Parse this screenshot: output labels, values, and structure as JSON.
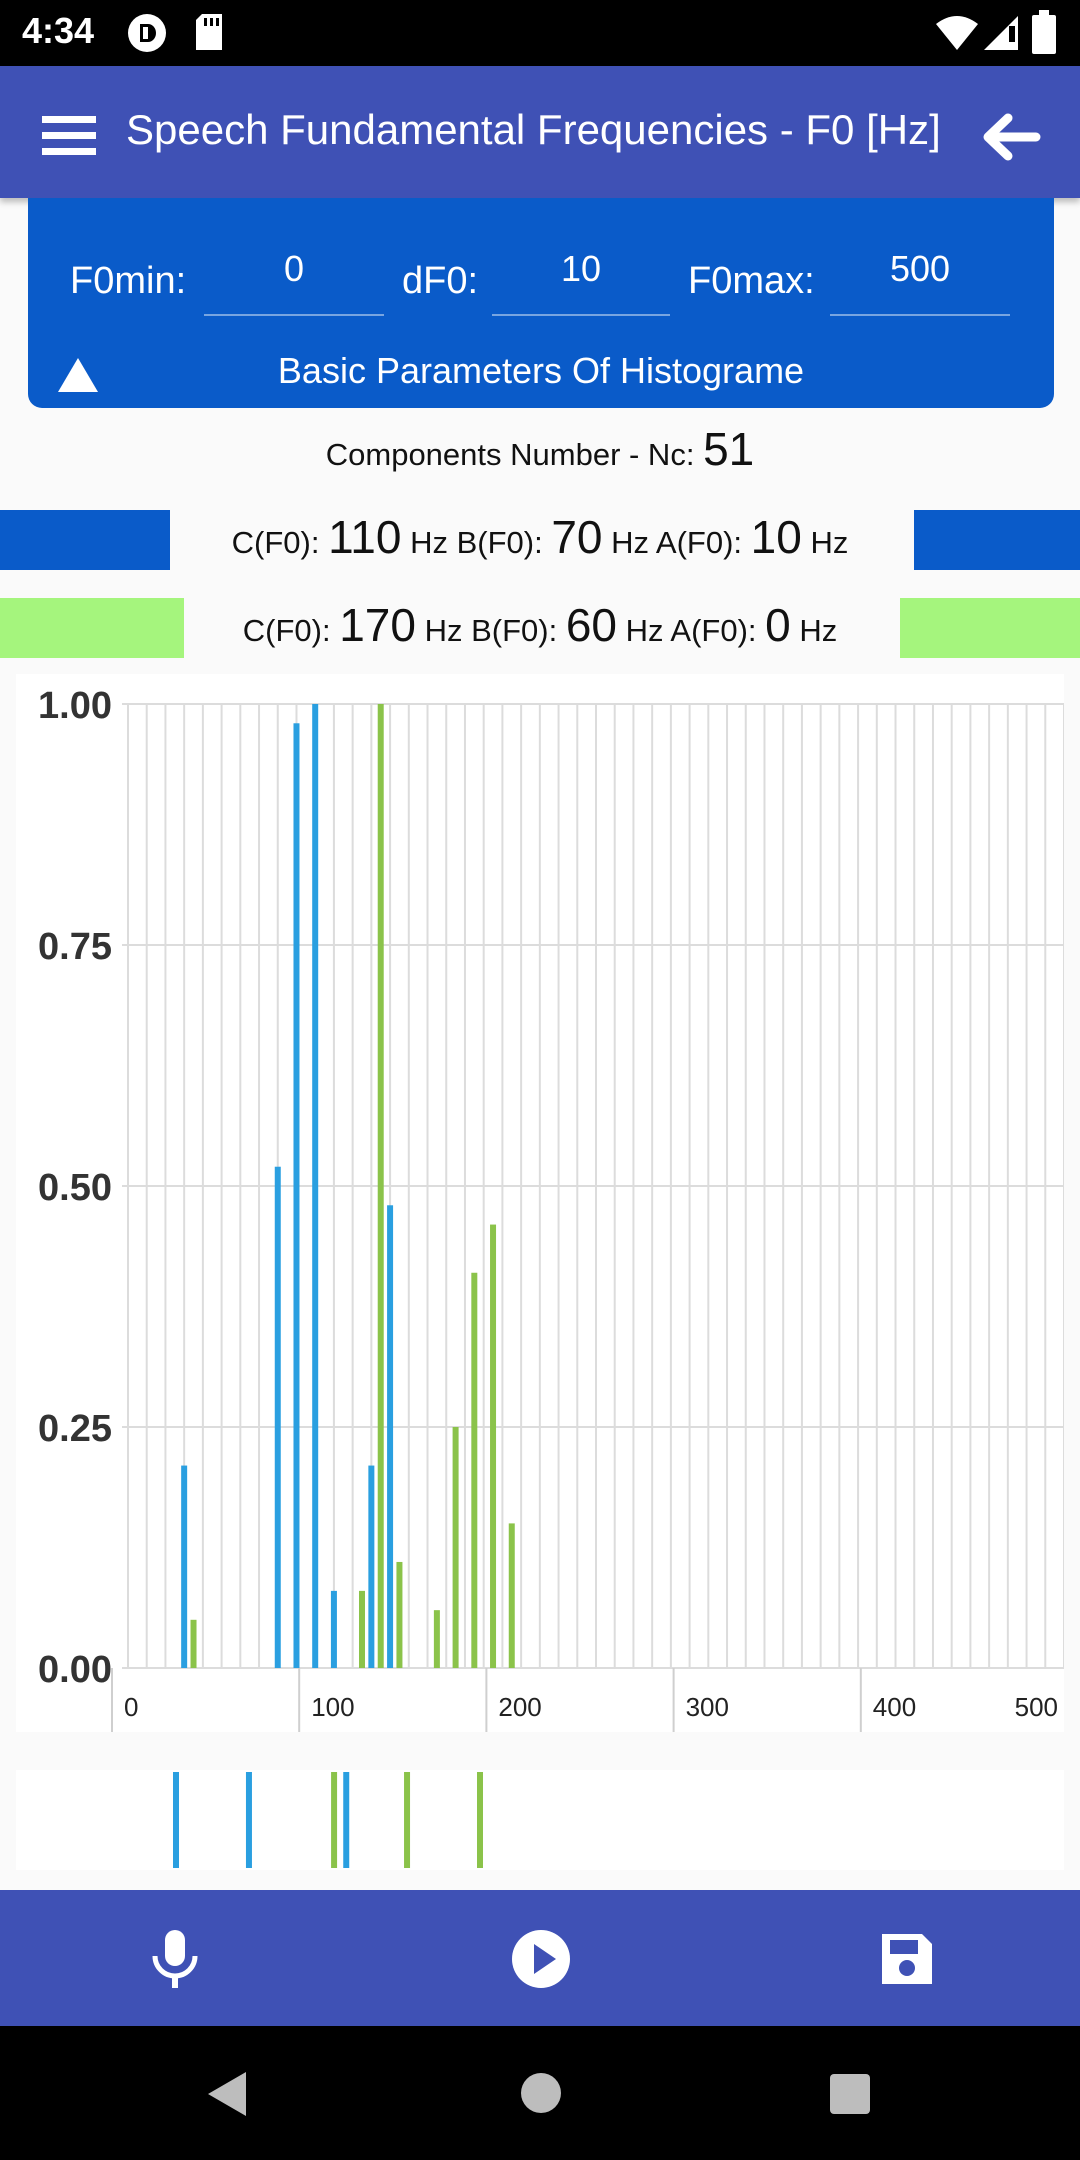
{
  "status_bar": {
    "time": "4:34"
  },
  "app_bar": {
    "title": "Speech Fundamental Frequencies - F0 [Hz]"
  },
  "params": {
    "f0min_label": "F0min:",
    "f0min_value": "0",
    "df0_label": "dF0:",
    "df0_value": "10",
    "f0max_label": "F0max:",
    "f0max_value": "500",
    "toggle_label": "Basic Parameters Of Histograme"
  },
  "components": {
    "nc_label": "Components Number - Nc:",
    "nc_value": "51"
  },
  "series_rows": [
    {
      "c_label": "C(F0):",
      "c_value": "110",
      "b_label": "Hz B(F0):",
      "b_value": "70",
      "a_label": "Hz A(F0):",
      "a_value": "10",
      "unit": "Hz",
      "color": "#0a5bc9"
    },
    {
      "c_label": "C(F0):",
      "c_value": "170",
      "b_label": "Hz B(F0):",
      "b_value": "60",
      "a_label": "Hz A(F0):",
      "a_value": "0",
      "unit": "Hz",
      "color": "#a5f57d"
    }
  ],
  "chart_data": {
    "type": "bar",
    "xlim": [
      0,
      500
    ],
    "ylim": [
      0,
      1
    ],
    "x_ticks": [
      "0",
      "100",
      "200",
      "300",
      "400",
      "500"
    ],
    "y_ticks": [
      "0.00",
      "0.25",
      "0.50",
      "0.75",
      "1.00"
    ],
    "grid": true,
    "series": [
      {
        "color": "#2a9fe0",
        "x": [
          30,
          80,
          90,
          100,
          110,
          130,
          140
        ],
        "values": [
          0.21,
          0.52,
          0.98,
          1.0,
          0.08,
          0.21,
          0.48
        ]
      },
      {
        "color": "#8bc34a",
        "x": [
          35,
          125,
          135,
          145,
          165,
          175,
          185,
          195,
          205
        ],
        "values": [
          0.05,
          0.08,
          1.0,
          0.11,
          0.06,
          0.25,
          0.41,
          0.46,
          0.15
        ]
      }
    ],
    "overview_markers": [
      {
        "x": 60,
        "color": "#2a9fe0"
      },
      {
        "x": 90,
        "color": "#2a9fe0"
      },
      {
        "x": 125,
        "color": "#8bc34a"
      },
      {
        "x": 130,
        "color": "#2a9fe0"
      },
      {
        "x": 155,
        "color": "#8bc34a"
      },
      {
        "x": 185,
        "color": "#8bc34a"
      }
    ]
  },
  "icons": {
    "menu": "menu-icon",
    "back": "arrow-back-icon",
    "toggle": "triangle-up-icon",
    "record": "microphone-icon",
    "play": "play-icon",
    "save": "save-icon",
    "sys_back": "back-triangle-icon",
    "sys_home": "home-circle-icon",
    "sys_recents": "recents-square-icon"
  }
}
